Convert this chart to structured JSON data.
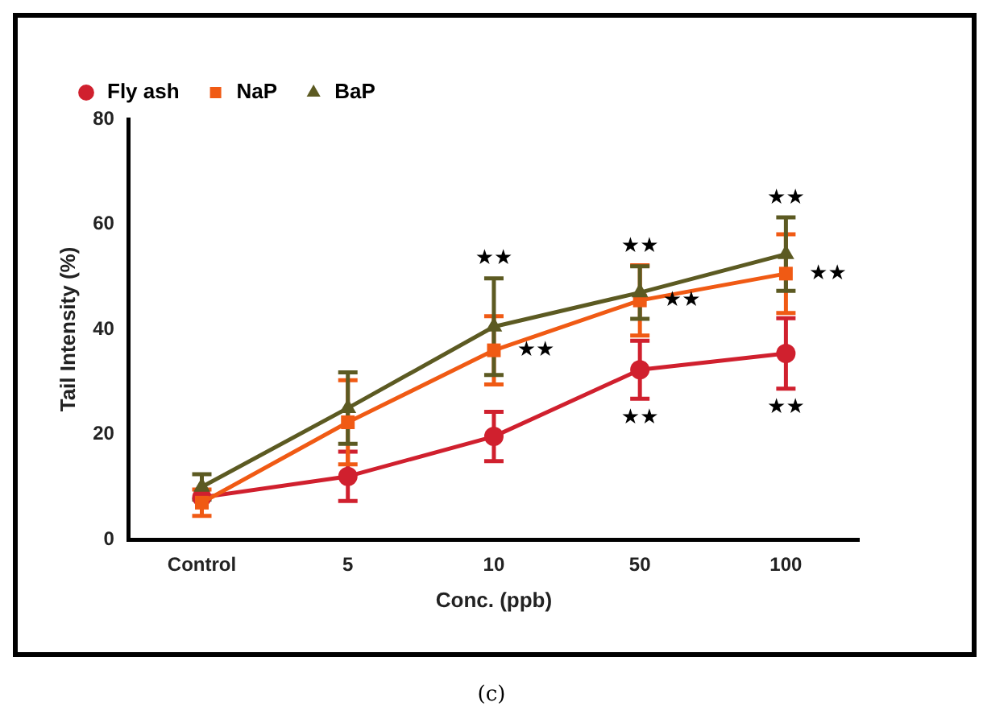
{
  "chart_data": {
    "type": "line",
    "xlabel": "Conc. (ppb)",
    "ylabel": "Tail Intensity (%)",
    "categories": [
      "Control",
      "5",
      "10",
      "50",
      "100"
    ],
    "series": [
      {
        "name": "Fly ash",
        "color": "#d0202e",
        "marker": "circle",
        "values": [
          8,
          12,
          19.6,
          32.3,
          35.4
        ],
        "errors": [
          null,
          4.7,
          4.7,
          5.5,
          6.7
        ]
      },
      {
        "name": "NaP",
        "color": "#f05a14",
        "marker": "square",
        "values": [
          7,
          22.3,
          36,
          45.5,
          50.6
        ],
        "errors": [
          2.5,
          8,
          6.5,
          6.7,
          7.5
        ]
      },
      {
        "name": "BaP",
        "color": "#5c5a22",
        "marker": "triangle",
        "values": [
          10,
          25,
          40.5,
          47,
          54.3
        ],
        "errors": [
          2.4,
          6.8,
          9.2,
          5,
          7
        ]
      }
    ],
    "ylim": [
      0,
      80
    ],
    "yticks": [
      0,
      20,
      40,
      60,
      80
    ],
    "grid": false,
    "legend": "top left",
    "annotations": [
      {
        "text": "★★",
        "x": "10",
        "y": 40.5
      },
      {
        "text": "★★",
        "x": "10",
        "y": 36
      },
      {
        "text": "★★",
        "x": "50",
        "y": 47
      },
      {
        "text": "★★",
        "x": "50",
        "y": 45.5
      },
      {
        "text": "★★",
        "x": "50",
        "y": 32.3
      },
      {
        "text": "★★",
        "x": "100",
        "y": 54.3
      },
      {
        "text": "★★",
        "x": "100",
        "y": 50.6
      },
      {
        "text": "★★",
        "x": "100",
        "y": 35.4
      },
      "(c)"
    ]
  }
}
